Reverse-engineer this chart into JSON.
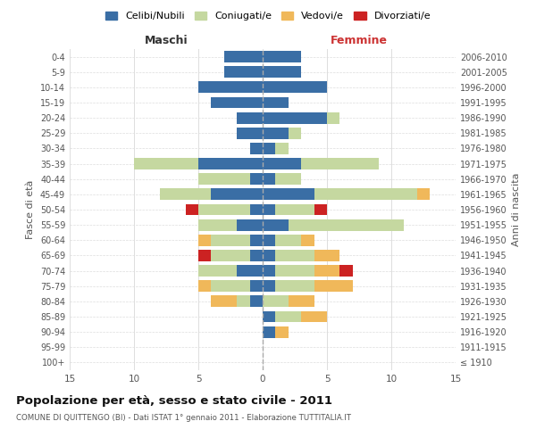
{
  "age_groups": [
    "100+",
    "95-99",
    "90-94",
    "85-89",
    "80-84",
    "75-79",
    "70-74",
    "65-69",
    "60-64",
    "55-59",
    "50-54",
    "45-49",
    "40-44",
    "35-39",
    "30-34",
    "25-29",
    "20-24",
    "15-19",
    "10-14",
    "5-9",
    "0-4"
  ],
  "birth_years": [
    "≤ 1910",
    "1911-1915",
    "1916-1920",
    "1921-1925",
    "1926-1930",
    "1931-1935",
    "1936-1940",
    "1941-1945",
    "1946-1950",
    "1951-1955",
    "1956-1960",
    "1961-1965",
    "1966-1970",
    "1971-1975",
    "1976-1980",
    "1981-1985",
    "1986-1990",
    "1991-1995",
    "1996-2000",
    "2001-2005",
    "2006-2010"
  ],
  "maschi": {
    "celibi": [
      0,
      0,
      0,
      0,
      1,
      1,
      2,
      1,
      1,
      2,
      1,
      4,
      1,
      5,
      1,
      2,
      2,
      4,
      5,
      3,
      3
    ],
    "coniugati": [
      0,
      0,
      0,
      0,
      1,
      3,
      3,
      3,
      3,
      3,
      4,
      4,
      4,
      5,
      0,
      0,
      0,
      0,
      0,
      0,
      0
    ],
    "vedovi": [
      0,
      0,
      0,
      0,
      2,
      1,
      0,
      0,
      1,
      0,
      0,
      0,
      0,
      0,
      0,
      0,
      0,
      0,
      0,
      0,
      0
    ],
    "divorziati": [
      0,
      0,
      0,
      0,
      0,
      0,
      0,
      1,
      0,
      0,
      1,
      0,
      0,
      0,
      0,
      0,
      0,
      0,
      0,
      0,
      0
    ]
  },
  "femmine": {
    "nubili": [
      0,
      0,
      1,
      1,
      0,
      1,
      1,
      1,
      1,
      2,
      1,
      4,
      1,
      3,
      1,
      2,
      5,
      2,
      5,
      3,
      3
    ],
    "coniugate": [
      0,
      0,
      0,
      2,
      2,
      3,
      3,
      3,
      2,
      9,
      3,
      8,
      2,
      6,
      1,
      1,
      1,
      0,
      0,
      0,
      0
    ],
    "vedove": [
      0,
      0,
      1,
      2,
      2,
      3,
      2,
      2,
      1,
      0,
      0,
      1,
      0,
      0,
      0,
      0,
      0,
      0,
      0,
      0,
      0
    ],
    "divorziate": [
      0,
      0,
      0,
      0,
      0,
      0,
      1,
      0,
      0,
      0,
      1,
      0,
      0,
      0,
      0,
      0,
      0,
      0,
      0,
      0,
      0
    ]
  },
  "colors": {
    "celibi_nubili": "#3a6ea5",
    "coniugati": "#c5d8a0",
    "vedovi": "#f0b85a",
    "divorziati": "#cc2222"
  },
  "xlim": 15,
  "title": "Popolazione per età, sesso e stato civile - 2011",
  "subtitle": "COMUNE DI QUITTENGO (BI) - Dati ISTAT 1° gennaio 2011 - Elaborazione TUTTITALIA.IT",
  "ylabel_left": "Fasce di età",
  "ylabel_right": "Anni di nascita",
  "xlabel_maschi": "Maschi",
  "xlabel_femmine": "Femmine",
  "legend_labels": [
    "Celibi/Nubili",
    "Coniugati/e",
    "Vedovi/e",
    "Divorziati/e"
  ],
  "bg_color": "#ffffff",
  "grid_color": "#dddddd"
}
